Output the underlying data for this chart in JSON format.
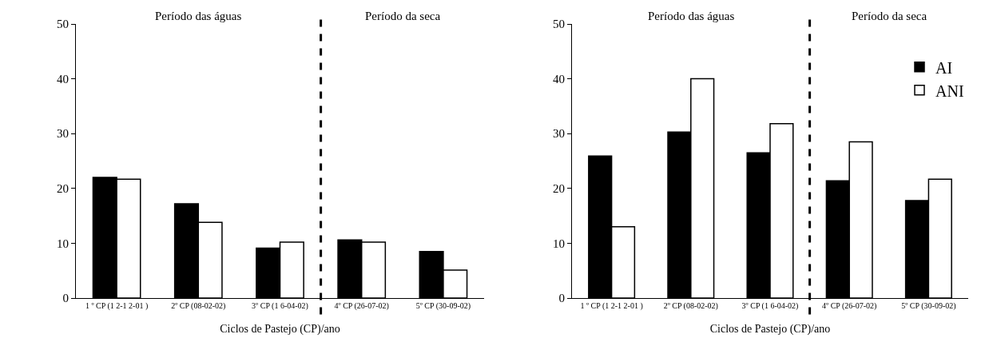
{
  "chart_data": [
    {
      "type": "bar",
      "xlabel": "Ciclos de Pastejo (CP)/ano",
      "categories": [
        "1 º CP (1 2-1 2-01 )",
        "2º CP (08-02-02)",
        "3º CP (1 6-04-02)",
        "4º CP (26-07-02)",
        "5º CP (30-09-02)"
      ],
      "series": [
        {
          "color": "#000000",
          "values": [
            22.0,
            17.2,
            9.1,
            10.6,
            8.5
          ]
        },
        {
          "color": "#ffffff",
          "values": [
            21.7,
            13.8,
            10.2,
            10.2,
            5.1
          ]
        }
      ],
      "ylim": [
        0,
        50
      ],
      "yticks": [
        0,
        10,
        20,
        30,
        40,
        50
      ],
      "grid": false,
      "legend": false,
      "annotations": [
        "Período das águas",
        "Período da seca"
      ]
    },
    {
      "type": "bar",
      "xlabel": "Ciclos de Pastejo (CP)/ano",
      "categories": [
        "1 º CP (1 2-1 2-01 )",
        "2º CP (08-02-02)",
        "3º CP (1 6-04-02)",
        "4º CP (26-07-02)",
        "5º CP (30-09-02)"
      ],
      "series": [
        {
          "name": "AI",
          "color": "#000000",
          "values": [
            25.9,
            30.3,
            26.5,
            21.4,
            17.8
          ]
        },
        {
          "name": "ANI",
          "color": "#ffffff",
          "values": [
            13.0,
            40.0,
            31.8,
            28.5,
            21.7
          ]
        }
      ],
      "ylim": [
        0,
        50
      ],
      "yticks": [
        0,
        10,
        20,
        30,
        40,
        50
      ],
      "grid": false,
      "legend": "top right",
      "annotations": [
        "Período das águas",
        "Período da seca"
      ]
    }
  ]
}
